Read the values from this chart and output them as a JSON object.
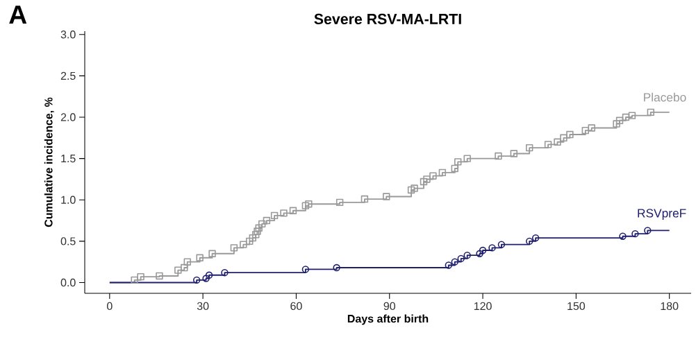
{
  "chart_data": {
    "type": "step",
    "title": "Severe RSV-MA-LRTI",
    "xlabel": "Days after birth",
    "ylabel": "Cumulative incidence, %",
    "annotations": [
      "A"
    ],
    "xlim": [
      -8,
      187
    ],
    "ylim": [
      -0.13,
      3.04
    ],
    "xticks": [
      0,
      30,
      60,
      90,
      120,
      150,
      180
    ],
    "yticks": [
      {
        "value": 0,
        "label": "0.0"
      },
      {
        "value": 0.5,
        "label": "0.5"
      },
      {
        "value": 1,
        "label": "1.0"
      },
      {
        "value": 1.5,
        "label": "1.5"
      },
      {
        "value": 2,
        "label": "2.0"
      },
      {
        "value": 2.5,
        "label": "2.5"
      },
      {
        "value": 3,
        "label": "3.0"
      }
    ],
    "series": [
      {
        "name": "Placebo",
        "color": "#999999",
        "marker": "square",
        "x": [
          0,
          8,
          10,
          16,
          22,
          24,
          25,
          29,
          33,
          40,
          43,
          45,
          46,
          47,
          47.5,
          48,
          49,
          50.5,
          53,
          56,
          59,
          63,
          64,
          74,
          82,
          89,
          97,
          98,
          101,
          102,
          104,
          107,
          111,
          112,
          115,
          125,
          130,
          135,
          141,
          144,
          146,
          148,
          153,
          155,
          163,
          164,
          166,
          168,
          174,
          180
        ],
        "values": [
          0,
          0.03,
          0.07,
          0.08,
          0.15,
          0.18,
          0.25,
          0.3,
          0.35,
          0.42,
          0.46,
          0.5,
          0.54,
          0.58,
          0.62,
          0.66,
          0.71,
          0.75,
          0.81,
          0.84,
          0.87,
          0.93,
          0.95,
          0.97,
          1.01,
          1.04,
          1.12,
          1.14,
          1.22,
          1.25,
          1.29,
          1.33,
          1.38,
          1.46,
          1.5,
          1.53,
          1.56,
          1.63,
          1.67,
          1.7,
          1.75,
          1.79,
          1.84,
          1.87,
          1.92,
          1.96,
          2.0,
          2.02,
          2.06,
          2.06
        ]
      },
      {
        "name": "RSVpreF",
        "color": "#1f1f6e",
        "marker": "circle",
        "x": [
          0,
          28,
          31,
          32,
          37,
          63,
          73,
          109,
          111,
          113,
          115,
          119,
          120,
          123,
          126,
          135,
          137,
          165,
          169,
          173,
          180
        ],
        "values": [
          0,
          0.03,
          0.05,
          0.09,
          0.12,
          0.16,
          0.18,
          0.21,
          0.25,
          0.29,
          0.33,
          0.35,
          0.39,
          0.42,
          0.46,
          0.5,
          0.54,
          0.56,
          0.59,
          0.63,
          0.63
        ]
      }
    ]
  }
}
